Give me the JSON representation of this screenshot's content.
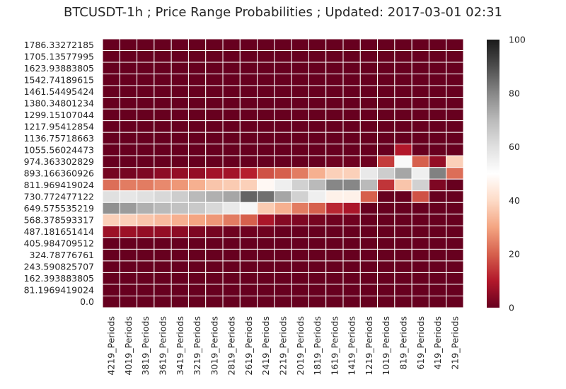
{
  "chart_data": {
    "type": "heatmap",
    "title": "BTCUSDT-1h ; Price Range Probabilities ; Updated: 2017-03-01 02:31",
    "xlabel": "",
    "ylabel": "",
    "x_labels": [
      "4219_Periods",
      "4019_Periods",
      "3819_Periods",
      "3619_Periods",
      "3419_Periods",
      "3219_Periods",
      "3019_Periods",
      "2819_Periods",
      "2619_Periods",
      "2419_Periods",
      "2219_Periods",
      "2019_Periods",
      "1819_Periods",
      "1619_Periods",
      "1419_Periods",
      "1219_Periods",
      "1019_Periods",
      "819_Periods",
      "619_Periods",
      "419_Periods",
      "219_Periods"
    ],
    "y_labels": [
      "1786.33272185",
      "1705.13577995",
      "1623.93883805",
      "1542.74189615",
      "1461.54495424",
      "1380.34801234",
      "1299.15107044",
      "1217.95412854",
      "1136.75718663",
      "1055.56024473",
      "974.363302829",
      "893.166360926",
      "811.969419024",
      "730.772477122",
      "649.575535219",
      "568.378593317",
      "487.181651414",
      "405.984709512",
      "324.78776761",
      "243.590825707",
      "162.393883805",
      "81.1969419024",
      "0.0"
    ],
    "colorbar": {
      "min": 0,
      "max": 100,
      "ticks": [
        0,
        20,
        40,
        60,
        80,
        100
      ]
    },
    "values": [
      [
        0,
        0,
        0,
        0,
        0,
        0,
        0,
        0,
        0,
        0,
        0,
        0,
        0,
        0,
        0,
        0,
        0,
        0,
        0,
        0,
        0
      ],
      [
        0,
        0,
        0,
        0,
        0,
        0,
        0,
        0,
        0,
        0,
        0,
        0,
        0,
        0,
        0,
        0,
        0,
        0,
        0,
        0,
        0
      ],
      [
        0,
        0,
        0,
        0,
        0,
        0,
        0,
        0,
        0,
        0,
        0,
        0,
        0,
        0,
        0,
        0,
        0,
        0,
        0,
        0,
        0
      ],
      [
        0,
        0,
        0,
        0,
        0,
        0,
        0,
        0,
        0,
        0,
        0,
        0,
        0,
        0,
        0,
        0,
        0,
        0,
        0,
        0,
        0
      ],
      [
        0,
        0,
        0,
        0,
        0,
        0,
        0,
        0,
        0,
        0,
        0,
        0,
        0,
        0,
        0,
        0,
        0,
        0,
        0,
        0,
        0
      ],
      [
        0,
        0,
        0,
        0,
        0,
        0,
        0,
        0,
        0,
        0,
        0,
        0,
        0,
        0,
        0,
        0,
        0,
        0,
        0,
        0,
        0
      ],
      [
        0,
        0,
        0,
        0,
        0,
        0,
        0,
        0,
        0,
        0,
        0,
        0,
        0,
        0,
        0,
        0,
        0,
        0,
        0,
        0,
        0
      ],
      [
        0,
        0,
        0,
        0,
        0,
        0,
        0,
        0,
        0,
        0,
        0,
        0,
        0,
        0,
        0,
        0,
        0,
        0,
        0,
        0,
        0
      ],
      [
        0,
        0,
        0,
        0,
        0,
        0,
        0,
        0,
        0,
        0,
        0,
        0,
        0,
        0,
        0,
        0,
        0,
        0,
        0,
        0,
        0
      ],
      [
        0,
        0,
        0,
        0,
        0,
        0,
        0,
        0,
        0,
        0,
        0,
        0,
        0,
        0,
        0,
        0,
        0,
        10,
        0,
        0,
        0
      ],
      [
        0,
        0,
        0,
        0,
        0,
        0,
        0,
        0,
        0,
        0,
        0,
        0,
        0,
        1,
        1,
        1,
        15,
        52,
        20,
        6,
        38
      ],
      [
        2,
        2,
        3,
        5,
        6,
        6,
        8,
        8,
        11,
        18,
        20,
        24,
        32,
        38,
        38,
        57,
        65,
        74,
        55,
        81,
        22
      ],
      [
        22,
        24,
        24,
        26,
        28,
        32,
        36,
        37,
        38,
        48,
        55,
        64,
        70,
        80,
        80,
        70,
        14,
        36,
        64,
        3,
        0
      ],
      [
        60,
        58,
        60,
        62,
        65,
        70,
        72,
        74,
        86,
        84,
        74,
        64,
        55,
        46,
        46,
        20,
        0,
        0,
        18,
        0,
        0
      ],
      [
        78,
        76,
        72,
        70,
        68,
        66,
        62,
        57,
        53,
        37,
        32,
        24,
        20,
        12,
        9,
        0,
        0,
        0,
        0,
        0,
        0
      ],
      [
        38,
        38,
        36,
        34,
        32,
        30,
        28,
        24,
        20,
        9,
        4,
        3,
        2,
        1,
        1,
        0,
        0,
        0,
        0,
        0,
        0
      ],
      [
        7,
        7,
        6,
        6,
        5,
        3,
        2,
        1,
        1,
        1,
        0,
        0,
        0,
        0,
        0,
        0,
        0,
        0,
        0,
        0,
        0
      ],
      [
        0,
        0,
        0,
        0,
        0,
        0,
        0,
        0,
        0,
        0,
        0,
        0,
        0,
        0,
        0,
        0,
        0,
        0,
        0,
        0,
        0
      ],
      [
        0,
        0,
        0,
        0,
        0,
        0,
        0,
        0,
        0,
        0,
        0,
        0,
        0,
        0,
        0,
        0,
        0,
        0,
        0,
        0,
        0
      ],
      [
        0,
        0,
        0,
        0,
        0,
        0,
        0,
        0,
        0,
        0,
        0,
        0,
        0,
        0,
        0,
        0,
        0,
        0,
        0,
        0,
        0
      ],
      [
        0,
        0,
        0,
        0,
        0,
        0,
        0,
        0,
        0,
        0,
        0,
        0,
        0,
        0,
        0,
        0,
        0,
        0,
        0,
        0,
        0
      ],
      [
        0,
        0,
        0,
        0,
        0,
        0,
        0,
        0,
        0,
        0,
        0,
        0,
        0,
        0,
        0,
        0,
        0,
        0,
        0,
        0,
        0
      ],
      [
        0,
        0,
        0,
        0,
        0,
        0,
        0,
        0,
        0,
        0,
        0,
        0,
        0,
        0,
        0,
        0,
        0,
        0,
        0,
        0,
        0
      ]
    ],
    "colormap": "RdGy_r"
  }
}
